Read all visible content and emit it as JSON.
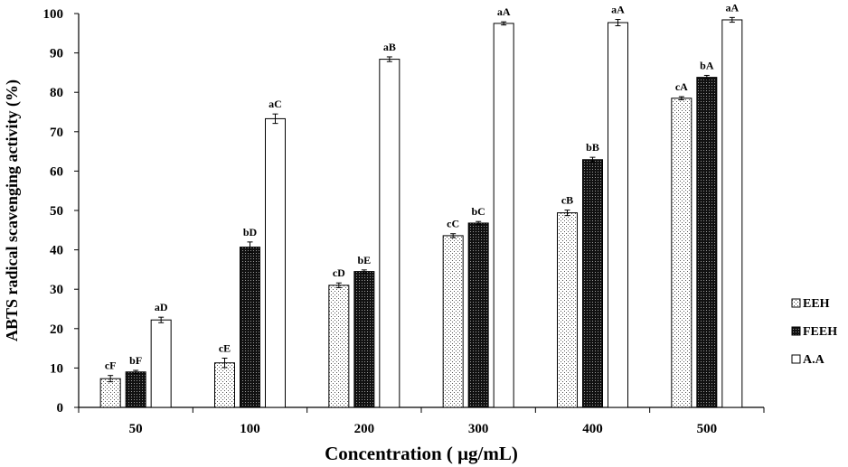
{
  "chart_data": {
    "type": "bar",
    "xlabel": "Concentration ( μg/mL)",
    "ylabel": "ABTS radical scavenging activity (%)",
    "ylim": [
      0,
      100
    ],
    "yticks": [
      "0",
      "10",
      "20",
      "30",
      "40",
      "50",
      "60",
      "70",
      "80",
      "90",
      "100"
    ],
    "categories": [
      "50",
      "100",
      "200",
      "300",
      "400",
      "500"
    ],
    "legend_position": "right",
    "grid": false,
    "series": [
      {
        "name": "EEH",
        "pattern": "dots",
        "values": [
          7.3,
          11.3,
          31.0,
          43.6,
          49.4,
          78.5
        ],
        "errors": [
          0.8,
          1.2,
          0.6,
          0.5,
          0.7,
          0.4
        ],
        "labels": [
          "cF",
          "cE",
          "cD",
          "cC",
          "cB",
          "cA"
        ]
      },
      {
        "name": "FEEH",
        "pattern": "dense-dark",
        "values": [
          9.0,
          40.7,
          34.5,
          46.8,
          62.9,
          83.8
        ],
        "errors": [
          0.4,
          1.3,
          0.4,
          0.4,
          0.6,
          0.5
        ],
        "labels": [
          "bF",
          "bD",
          "bE",
          "bC",
          "bB",
          "bA"
        ]
      },
      {
        "name": "A.A",
        "pattern": "none",
        "values": [
          22.2,
          73.3,
          88.4,
          97.5,
          97.7,
          98.4
        ],
        "errors": [
          0.7,
          1.2,
          0.6,
          0.4,
          0.8,
          0.6
        ],
        "labels": [
          "aD",
          "aC",
          "aB",
          "aA",
          "aA",
          "aA"
        ]
      }
    ]
  }
}
